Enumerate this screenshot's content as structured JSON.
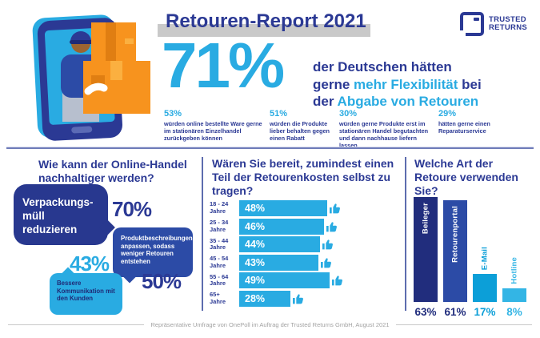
{
  "header": {
    "title": "Retouren-Report 2021",
    "logo_line1": "TRUSTED",
    "logo_line2": "RETURNS"
  },
  "hero": {
    "value": "71%",
    "statement": {
      "s1": "der Deutschen hätten",
      "s2": "gerne ",
      "s3": "mehr Flexibilität ",
      "s4": "bei",
      "s5": "der ",
      "s6": "Abgabe von Retouren"
    },
    "substats": [
      {
        "value": "53%",
        "text": "würden online bestellte Ware gerne im stationären Einzelhandel zurückgeben können"
      },
      {
        "value": "51%",
        "text": "würden die Produkte lieber behalten gegen einen Rabatt"
      },
      {
        "value": "30%",
        "text": "würden gerne Produkte erst im stationären Handel begutachten und dann nachhause liefern lassen"
      },
      {
        "value": "29%",
        "text": "hätten gerne einen Reparaturservice"
      }
    ]
  },
  "sustainability": {
    "heading": "Wie kann der Online-Handel nachhaltiger werden?",
    "items": [
      {
        "value": "70%",
        "text": "Verpackungs-müll reduzieren"
      },
      {
        "value": "50%",
        "text": "Produktbeschreibungen anpassen, sodass weniger Retouren entstehen"
      },
      {
        "value": "43%",
        "text": "Bessere Kommunikation mit den Kunden"
      }
    ]
  },
  "footer": {
    "source": "Repräsentative Umfrage von OnePoll im Auftrag der Trusted Returns GmbH, August 2021"
  },
  "chart_data": [
    {
      "type": "bar",
      "orientation": "horizontal",
      "title": "Wären Sie bereit, zumindest einen Teil der Retourenkosten selbst zu tragen?",
      "categories": [
        "18 - 24 Jahre",
        "25 - 34 Jahre",
        "35 - 44 Jahre",
        "45 - 54 Jahre",
        "55 - 64 Jahre",
        "65+ Jahre"
      ],
      "values": [
        48,
        46,
        44,
        43,
        49,
        28
      ],
      "unit": "%",
      "xlim": [
        0,
        100
      ],
      "bar_color": "#29abe2",
      "value_labels": "inside-bar",
      "icon": "thumbs-up"
    },
    {
      "type": "bar",
      "orientation": "vertical",
      "title": "Welche Art der Retoure verwenden Sie?",
      "categories": [
        "Beileger",
        "Retourenportal",
        "E-Mail",
        "Hotline"
      ],
      "values": [
        63,
        61,
        17,
        8
      ],
      "unit": "%",
      "ylim": [
        0,
        70
      ],
      "bar_colors": [
        "#212d7d",
        "#2c4ba6",
        "#0c9fd8",
        "#33b5e5"
      ],
      "value_colors": [
        "#212d7d",
        "#212d7d",
        "#0c9fd8",
        "#33b5e5"
      ],
      "label_inside": [
        true,
        true,
        false,
        false
      ]
    },
    {
      "type": "bar",
      "orientation": "speech-bubbles",
      "title": "Wie kann der Online-Handel nachhaltiger werden?",
      "categories": [
        "Verpackungsmüll reduzieren",
        "Produktbeschreibungen anpassen, sodass weniger Retouren entstehen",
        "Bessere Kommunikation mit den Kunden"
      ],
      "values": [
        70,
        50,
        43
      ],
      "unit": "%"
    }
  ]
}
